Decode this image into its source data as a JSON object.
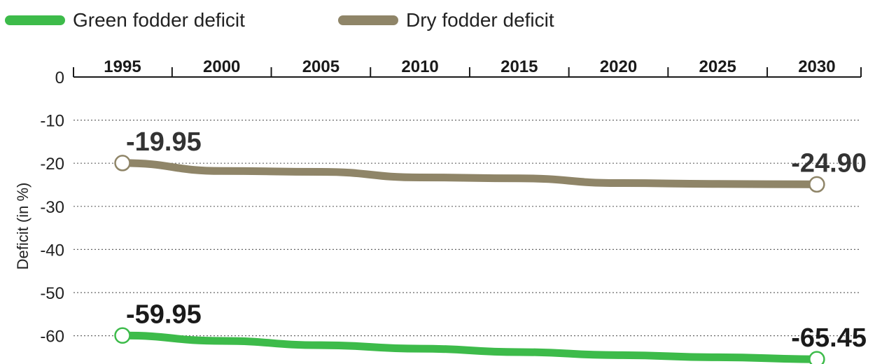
{
  "chart_data": {
    "type": "line",
    "title": "",
    "xlabel": "",
    "ylabel": "Deficit (in %)",
    "x": [
      1995,
      2000,
      2005,
      2010,
      2015,
      2020,
      2025,
      2030
    ],
    "x_tick_labels": [
      "1995",
      "2000",
      "2005",
      "2010",
      "2015",
      "2020",
      "2025",
      "2030"
    ],
    "y_ticks": [
      0,
      -10,
      -20,
      -30,
      -40,
      -50,
      -60
    ],
    "y_tick_labels": [
      "0",
      "-10",
      "-20",
      "-30",
      "-40",
      "-50",
      "-60"
    ],
    "ylim": [
      -65.45,
      0
    ],
    "grid": true,
    "legend_position": "top-left",
    "series": [
      {
        "name": "Green fodder deficit",
        "color": "#3dbb4a",
        "values": [
          -59.95,
          -61.2,
          -62.2,
          -63.0,
          -63.8,
          -64.5,
          -65.0,
          -65.45
        ],
        "labels": [
          {
            "index": 0,
            "text": "-59.95"
          },
          {
            "index": 7,
            "text": "-65.45"
          }
        ]
      },
      {
        "name": "Dry fodder deficit",
        "color": "#8f8568",
        "values": [
          -19.95,
          -21.8,
          -22.0,
          -23.3,
          -23.5,
          -24.6,
          -24.8,
          -24.9
        ],
        "labels": [
          {
            "index": 0,
            "text": "-19.95"
          },
          {
            "index": 7,
            "text": "-24.90"
          }
        ]
      }
    ]
  }
}
